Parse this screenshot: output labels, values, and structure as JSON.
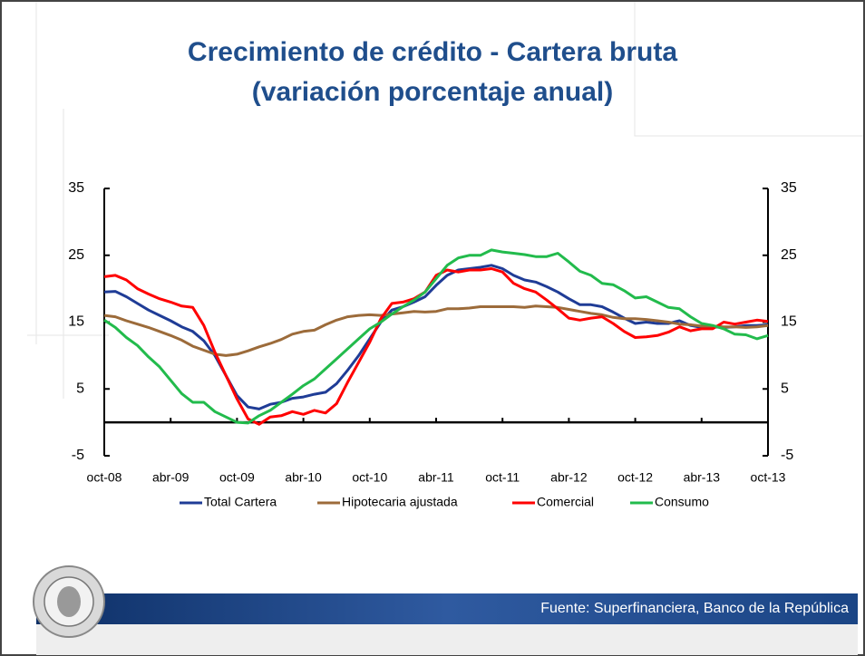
{
  "chart_data": {
    "type": "line",
    "title": [
      "Crecimiento de crédito - Cartera bruta",
      "(variación porcentaje anual)"
    ],
    "source": "Fuente: Superfinanciera, Banco de la República",
    "categories": [
      "oct-08",
      null,
      null,
      null,
      null,
      null,
      "abr-09",
      null,
      null,
      null,
      null,
      null,
      "oct-09",
      null,
      null,
      null,
      null,
      null,
      "abr-10",
      null,
      null,
      null,
      null,
      null,
      "oct-10",
      null,
      null,
      null,
      null,
      null,
      "abr-11",
      null,
      null,
      null,
      null,
      null,
      "oct-11",
      null,
      null,
      null,
      null,
      null,
      "abr-12",
      null,
      null,
      null,
      null,
      null,
      "oct-12",
      null,
      null,
      null,
      null,
      null,
      "abr-13",
      null,
      null,
      null,
      null,
      null,
      "oct-13"
    ],
    "series": [
      {
        "name": "Total Cartera",
        "color": "#1f3c96",
        "values": [
          19.5,
          19.6,
          18.8,
          17.8,
          16.8,
          16,
          15.2,
          14.3,
          13.6,
          12.2,
          10,
          7,
          4,
          2.3,
          2,
          2.7,
          3,
          3.6,
          3.8,
          4.2,
          4.5,
          5.8,
          7.8,
          10,
          12.5,
          15,
          16.8,
          17.3,
          18,
          18.8,
          20.5,
          22,
          22.8,
          23,
          23.2,
          23.5,
          23,
          22,
          21.3,
          21,
          20.3,
          19.5,
          18.5,
          17.6,
          17.6,
          17.3,
          16.5,
          15.6,
          14.8,
          15,
          14.8,
          14.8,
          15.2,
          14.5,
          14.2,
          14.3,
          14.2,
          14.3,
          14.5,
          14.5,
          14.6
        ]
      },
      {
        "name": "Hipotecaria ajustada",
        "color": "#9c6b3a",
        "values": [
          16,
          15.8,
          15.2,
          14.7,
          14.2,
          13.6,
          13,
          12.3,
          11.4,
          10.8,
          10.2,
          10,
          10.2,
          10.7,
          11.3,
          11.8,
          12.4,
          13.2,
          13.6,
          13.8,
          14.6,
          15.3,
          15.8,
          16,
          16.1,
          16,
          16.2,
          16.4,
          16.6,
          16.5,
          16.6,
          17,
          17,
          17.1,
          17.3,
          17.3,
          17.3,
          17.3,
          17.2,
          17.4,
          17.3,
          17.2,
          16.9,
          16.6,
          16.3,
          16.1,
          15.7,
          15.5,
          15.5,
          15.4,
          15.2,
          15,
          14.7,
          14.6,
          14.4,
          14.4,
          14.3,
          14.3,
          14.2,
          14.3,
          14.5
        ]
      },
      {
        "name": "Comercial",
        "color": "#ff0000",
        "values": [
          21.8,
          22,
          21.3,
          20,
          19.2,
          18.5,
          18,
          17.4,
          17.2,
          14.5,
          10.5,
          7,
          3.5,
          0.5,
          -0.3,
          0.8,
          1,
          1.6,
          1.2,
          1.8,
          1.4,
          2.8,
          6,
          9,
          12,
          15.5,
          17.8,
          18,
          18.5,
          19.5,
          22,
          22.8,
          22.5,
          22.8,
          22.8,
          23,
          22.5,
          20.8,
          20,
          19.5,
          18.3,
          17,
          15.6,
          15.3,
          15.6,
          15.8,
          14.8,
          13.6,
          12.7,
          12.8,
          13,
          13.5,
          14.3,
          13.7,
          14,
          14,
          15,
          14.7,
          15,
          15.3,
          15.1
        ]
      },
      {
        "name": "Consumo",
        "color": "#22bb4c",
        "values": [
          15.3,
          14.2,
          12.7,
          11.5,
          9.8,
          8.3,
          6.3,
          4.3,
          3,
          3,
          1.6,
          0.8,
          0,
          -0.1,
          1,
          1.8,
          3,
          4.2,
          5.5,
          6.5,
          8,
          9.5,
          11,
          12.5,
          14,
          15,
          16.2,
          17.3,
          18.3,
          19.5,
          21.5,
          23.5,
          24.6,
          25,
          25,
          25.8,
          25.5,
          25.3,
          25.1,
          24.8,
          24.8,
          25.3,
          24,
          22.6,
          22,
          20.8,
          20.6,
          19.7,
          18.6,
          18.8,
          18,
          17.2,
          17,
          15.8,
          14.8,
          14.5,
          14,
          13.2,
          13.1,
          12.5,
          13
        ]
      }
    ],
    "ylim": [
      -5,
      35
    ],
    "yticks": [
      -5,
      5,
      15,
      25,
      35
    ],
    "y2lim": [
      -5,
      35
    ],
    "y2ticks": [
      -5,
      5,
      15,
      25,
      35
    ],
    "grid": false,
    "legend": "bottom"
  }
}
